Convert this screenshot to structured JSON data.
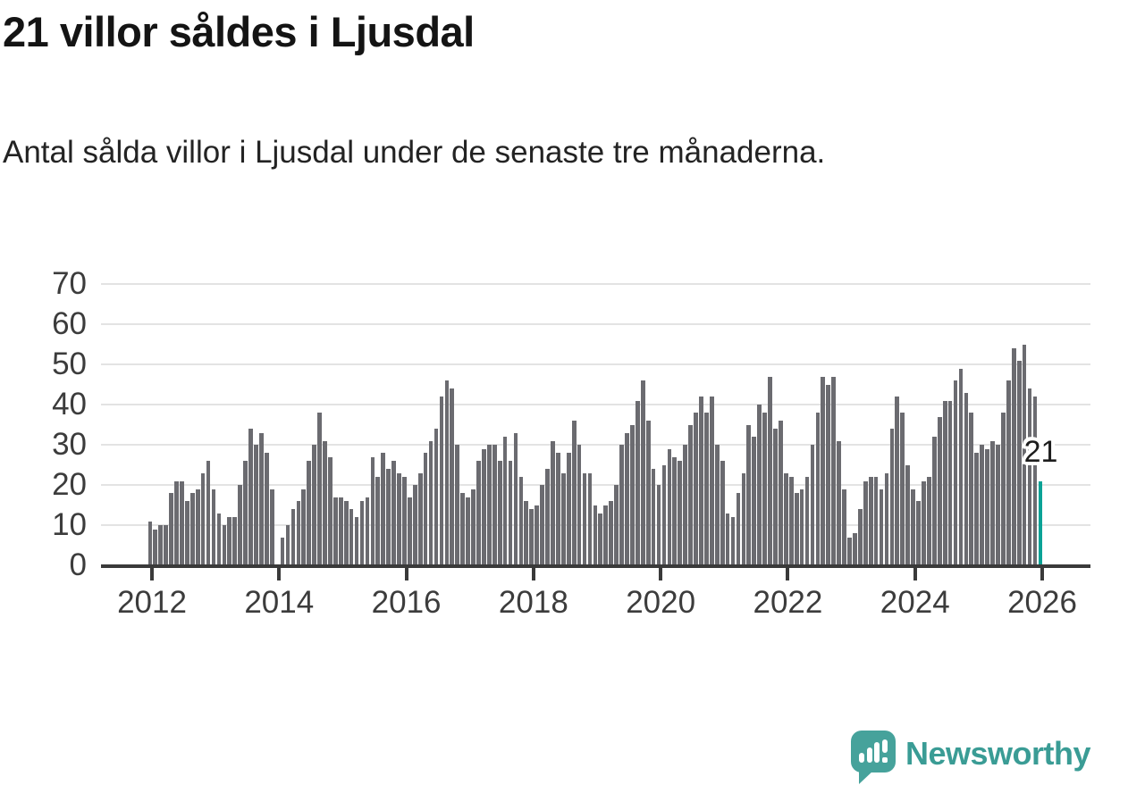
{
  "header": {
    "title": "21 villor såldes i Ljusdal",
    "subtitle": "Antal sålda villor i Ljusdal under de senaste tre månaderna."
  },
  "chart_data": {
    "type": "bar",
    "title": "21 villor såldes i Ljusdal",
    "xlabel": "",
    "ylabel": "",
    "ylim": [
      0,
      70
    ],
    "y_ticks": [
      0,
      10,
      20,
      30,
      40,
      50,
      60,
      70
    ],
    "x_tick_labels": [
      "2012",
      "2014",
      "2016",
      "2018",
      "2020",
      "2022",
      "2024",
      "2026"
    ],
    "start_month": "2012-01",
    "frequency": "monthly",
    "grid": true,
    "legend_position": "none",
    "bar_color": "#6b6b70",
    "values": [
      11,
      9,
      10,
      10,
      18,
      21,
      21,
      16,
      18,
      19,
      23,
      26,
      19,
      13,
      10,
      12,
      12,
      20,
      26,
      34,
      30,
      33,
      28,
      19,
      0,
      7,
      10,
      14,
      16,
      19,
      26,
      30,
      38,
      31,
      27,
      17,
      17,
      16,
      14,
      12,
      16,
      17,
      27,
      22,
      28,
      24,
      26,
      23,
      22,
      17,
      20,
      23,
      28,
      31,
      34,
      42,
      46,
      44,
      30,
      18,
      17,
      19,
      26,
      29,
      30,
      30,
      26,
      32,
      26,
      33,
      22,
      16,
      14,
      15,
      20,
      24,
      31,
      28,
      23,
      28,
      36,
      30,
      23,
      23,
      15,
      13,
      15,
      16,
      20,
      30,
      33,
      35,
      41,
      46,
      36,
      24,
      20,
      25,
      29,
      27,
      26,
      30,
      35,
      38,
      42,
      38,
      42,
      30,
      26,
      13,
      12,
      18,
      23,
      35,
      32,
      40,
      38,
      47,
      34,
      36,
      23,
      22,
      18,
      19,
      22,
      30,
      38,
      47,
      45,
      47,
      31,
      19,
      7,
      8,
      14,
      21,
      22,
      22,
      19,
      23,
      34,
      42,
      38,
      25,
      19,
      16,
      21,
      22,
      32,
      37,
      41,
      41,
      46,
      49,
      43,
      38,
      28,
      30,
      29,
      31,
      30,
      38,
      46,
      54,
      51,
      55,
      44,
      42,
      21
    ],
    "highlight": {
      "index": 168,
      "label": "21",
      "color": "#0aa296"
    }
  },
  "footer": {
    "brand": "Newsworthy"
  },
  "colors": {
    "bar": "#6b6b70",
    "highlight": "#0aa296",
    "brand_teal": "#3a9c95",
    "axis": "#3a3a3a",
    "grid": "#e3e3e3"
  }
}
